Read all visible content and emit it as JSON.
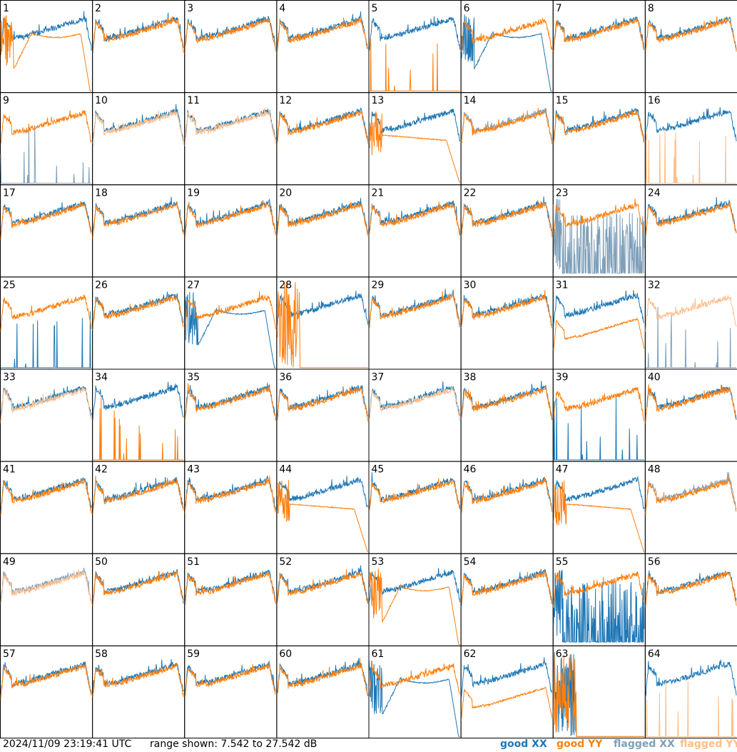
{
  "colors": {
    "good_xx": "#1f77b4",
    "good_yy": "#ff7f0e",
    "flagged_xx": "#7f9fb9",
    "flagged_yy": "#ffbe8a",
    "grid": "#000000"
  },
  "footer": {
    "timestamp": "2024/11/09 23:19:41 UTC",
    "range": "range shown: 7.542 to 27.542 dB"
  },
  "legend": [
    {
      "label": "good XX",
      "color": "#1f77b4"
    },
    {
      "label": "good YY",
      "color": "#ff7f0e"
    },
    {
      "label": "flagged XX",
      "color": "#7f9fb9"
    },
    {
      "label": "flagged YY",
      "color": "#ffbe8a"
    }
  ],
  "chart_data": {
    "type": "line",
    "grid": {
      "rows": 8,
      "cols": 8
    },
    "ylim": [
      7.542,
      27.542
    ],
    "yunit": "dB",
    "panel_labels": [
      "1",
      "2",
      "3",
      "4",
      "5",
      "6",
      "7",
      "8",
      "9",
      "10",
      "11",
      "12",
      "13",
      "14",
      "15",
      "16",
      "17",
      "18",
      "19",
      "20",
      "21",
      "22",
      "23",
      "24",
      "25",
      "26",
      "27",
      "28",
      "29",
      "30",
      "31",
      "32",
      "33",
      "34",
      "35",
      "36",
      "37",
      "38",
      "39",
      "40",
      "41",
      "42",
      "43",
      "44",
      "45",
      "46",
      "47",
      "48",
      "49",
      "50",
      "51",
      "52",
      "53",
      "54",
      "55",
      "56",
      "57",
      "58",
      "59",
      "60",
      "61",
      "62",
      "63",
      "64"
    ],
    "panels": [
      {
        "id": "1",
        "xx": "good",
        "yy": "good",
        "yy_shape": "dip_rolloff"
      },
      {
        "id": "2",
        "xx": "good",
        "yy": "good"
      },
      {
        "id": "3",
        "xx": "good",
        "yy": "good"
      },
      {
        "id": "4",
        "xx": "good",
        "yy": "good"
      },
      {
        "id": "5",
        "xx": "good",
        "yy": "good",
        "yy_shape": "spikes_low"
      },
      {
        "id": "6",
        "xx": "good",
        "yy": "good",
        "xx_shape": "dip_rolloff"
      },
      {
        "id": "7",
        "xx": "good",
        "yy": "good"
      },
      {
        "id": "8",
        "xx": "good",
        "yy": "good"
      },
      {
        "id": "9",
        "xx": "flagged",
        "yy": "good",
        "xx_shape": "spikes_low"
      },
      {
        "id": "10",
        "xx": "good",
        "yy": "flagged"
      },
      {
        "id": "11",
        "xx": "good",
        "yy": "flagged"
      },
      {
        "id": "12",
        "xx": "good",
        "yy": "good"
      },
      {
        "id": "13",
        "xx": "good",
        "yy": "good",
        "yy_shape": "rolloff"
      },
      {
        "id": "14",
        "xx": "flagged",
        "yy": "good"
      },
      {
        "id": "15",
        "xx": "good",
        "yy": "good"
      },
      {
        "id": "16",
        "xx": "good",
        "yy": "flagged",
        "yy_shape": "spikes_low"
      },
      {
        "id": "17",
        "xx": "good",
        "yy": "good"
      },
      {
        "id": "18",
        "xx": "good",
        "yy": "good"
      },
      {
        "id": "19",
        "xx": "good",
        "yy": "good"
      },
      {
        "id": "20",
        "xx": "good",
        "yy": "good"
      },
      {
        "id": "21",
        "xx": "good",
        "yy": "good"
      },
      {
        "id": "22",
        "xx": "good",
        "yy": "good"
      },
      {
        "id": "23",
        "xx": "flagged",
        "yy": "good",
        "xx_shape": "noisy_low"
      },
      {
        "id": "24",
        "xx": "good",
        "yy": "good"
      },
      {
        "id": "25",
        "xx": "good",
        "yy": "good",
        "xx_shape": "spikes_low"
      },
      {
        "id": "26",
        "xx": "good",
        "yy": "good"
      },
      {
        "id": "27",
        "xx": "good",
        "yy": "good",
        "xx_shape": "dip_rolloff"
      },
      {
        "id": "28",
        "xx": "good",
        "yy": "good",
        "yy_shape": "dead"
      },
      {
        "id": "29",
        "xx": "good",
        "yy": "good"
      },
      {
        "id": "30",
        "xx": "good",
        "yy": "good"
      },
      {
        "id": "31",
        "xx": "good",
        "yy": "good",
        "yy_shape": "low_offset"
      },
      {
        "id": "32",
        "xx": "flagged",
        "yy": "flagged",
        "xx_shape": "spikes_low"
      },
      {
        "id": "33",
        "xx": "good",
        "yy": "flagged"
      },
      {
        "id": "34",
        "xx": "good",
        "yy": "good",
        "yy_shape": "spikes_low"
      },
      {
        "id": "35",
        "xx": "good",
        "yy": "good"
      },
      {
        "id": "36",
        "xx": "good",
        "yy": "good"
      },
      {
        "id": "37",
        "xx": "good",
        "yy": "flagged"
      },
      {
        "id": "38",
        "xx": "good",
        "yy": "good"
      },
      {
        "id": "39",
        "xx": "good",
        "yy": "good",
        "xx_shape": "spikes_low"
      },
      {
        "id": "40",
        "xx": "good",
        "yy": "good"
      },
      {
        "id": "41",
        "xx": "good",
        "yy": "good"
      },
      {
        "id": "42",
        "xx": "good",
        "yy": "good"
      },
      {
        "id": "43",
        "xx": "good",
        "yy": "good"
      },
      {
        "id": "44",
        "xx": "good",
        "yy": "good",
        "yy_shape": "rolloff"
      },
      {
        "id": "45",
        "xx": "good",
        "yy": "good"
      },
      {
        "id": "46",
        "xx": "good",
        "yy": "good"
      },
      {
        "id": "47",
        "xx": "good",
        "yy": "good",
        "yy_shape": "rolloff"
      },
      {
        "id": "48",
        "xx": "flagged",
        "yy": "good"
      },
      {
        "id": "49",
        "xx": "flagged",
        "yy": "flagged"
      },
      {
        "id": "50",
        "xx": "good",
        "yy": "good"
      },
      {
        "id": "51",
        "xx": "good",
        "yy": "good"
      },
      {
        "id": "52",
        "xx": "good",
        "yy": "good"
      },
      {
        "id": "53",
        "xx": "good",
        "yy": "good",
        "yy_shape": "dip_rolloff"
      },
      {
        "id": "54",
        "xx": "good",
        "yy": "good"
      },
      {
        "id": "55",
        "xx": "good",
        "yy": "good",
        "xx_shape": "noisy_low"
      },
      {
        "id": "56",
        "xx": "good",
        "yy": "good"
      },
      {
        "id": "57",
        "xx": "good",
        "yy": "good"
      },
      {
        "id": "58",
        "xx": "good",
        "yy": "good"
      },
      {
        "id": "59",
        "xx": "good",
        "yy": "good"
      },
      {
        "id": "60",
        "xx": "good",
        "yy": "good"
      },
      {
        "id": "61",
        "xx": "good",
        "yy": "good",
        "xx_shape": "dip_rolloff"
      },
      {
        "id": "62",
        "xx": "good",
        "yy": "good",
        "yy_shape": "low_offset"
      },
      {
        "id": "63",
        "xx": "good",
        "yy": "good",
        "xx_shape": "dead",
        "yy_shape": "dead"
      },
      {
        "id": "64",
        "xx": "good",
        "yy": "flagged",
        "yy_shape": "spikes_low"
      }
    ]
  }
}
